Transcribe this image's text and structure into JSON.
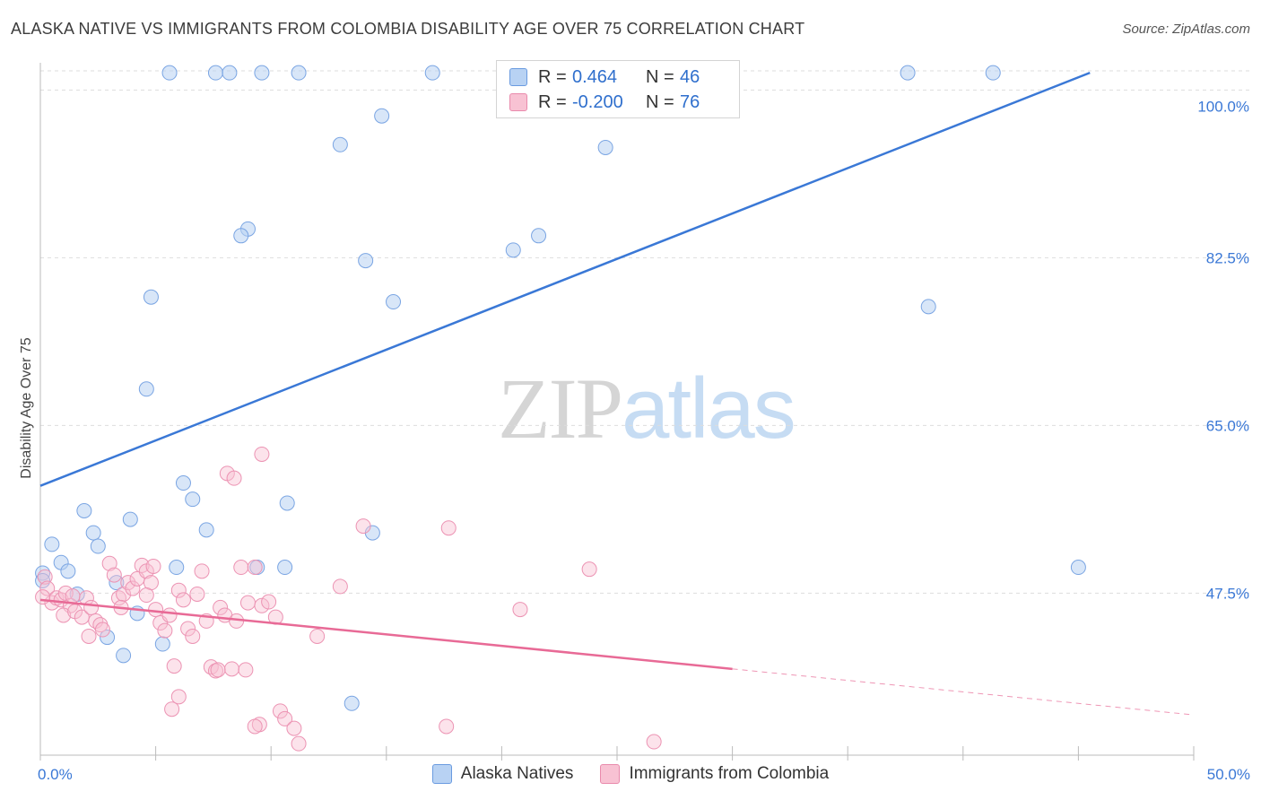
{
  "title": "ALASKA NATIVE VS IMMIGRANTS FROM COLOMBIA DISABILITY AGE OVER 75 CORRELATION CHART",
  "source": "Source: ZipAtlas.com",
  "watermark": {
    "zip": "ZIP",
    "atlas": "atlas"
  },
  "colors": {
    "blue": "#3a78d6",
    "blue_fill": "#b8d2f3",
    "pink": "#e86a96",
    "pink_fill": "#f8c2d3",
    "tick_label": "#3a78d6",
    "grid": "#dddddd"
  },
  "legend": {
    "rows": [
      {
        "r_label": "R =",
        "r_value": "0.464",
        "n_label": "N =",
        "n_value": "46"
      },
      {
        "r_label": "R =",
        "r_value": "-0.200",
        "n_label": "N =",
        "n_value": "76"
      }
    ]
  },
  "chart_data": {
    "type": "scatter",
    "title": "ALASKA NATIVE VS IMMIGRANTS FROM COLOMBIA DISABILITY AGE OVER 75 CORRELATION CHART",
    "xlabel": "",
    "ylabel": "Disability Age Over 75",
    "xlim": [
      0,
      50
    ],
    "ylim": [
      30.6,
      102
    ],
    "x_tick_labels": [
      "0.0%",
      "50.0%"
    ],
    "y_ticks": [
      47.5,
      65.0,
      82.5,
      100.0
    ],
    "y_tick_labels": [
      "47.5%",
      "65.0%",
      "82.5%",
      "100.0%"
    ],
    "grid": true,
    "legend_position": "bottom",
    "series": [
      {
        "name": "Alaska Natives",
        "color": "#3a78d6",
        "trend": {
          "x": [
            0,
            45.5
          ],
          "y": [
            58.7,
            101.8
          ]
        },
        "points": [
          [
            5.6,
            101.8
          ],
          [
            7.6,
            101.8
          ],
          [
            8.2,
            101.8
          ],
          [
            9.6,
            101.8
          ],
          [
            11.2,
            101.8
          ],
          [
            17.0,
            101.8
          ],
          [
            20.4,
            101.8
          ],
          [
            37.6,
            101.8
          ],
          [
            41.3,
            101.8
          ],
          [
            14.8,
            97.3
          ],
          [
            13.0,
            94.3
          ],
          [
            24.5,
            94.0
          ],
          [
            9.0,
            85.5
          ],
          [
            8.7,
            84.8
          ],
          [
            21.6,
            84.8
          ],
          [
            20.5,
            83.3
          ],
          [
            14.1,
            82.2
          ],
          [
            4.8,
            78.4
          ],
          [
            15.3,
            77.9
          ],
          [
            38.5,
            77.4
          ],
          [
            4.6,
            68.8
          ],
          [
            6.2,
            59.0
          ],
          [
            6.6,
            57.3
          ],
          [
            10.7,
            56.9
          ],
          [
            1.9,
            56.1
          ],
          [
            3.9,
            55.2
          ],
          [
            7.2,
            54.1
          ],
          [
            2.3,
            53.8
          ],
          [
            14.4,
            53.8
          ],
          [
            0.5,
            52.6
          ],
          [
            2.5,
            52.4
          ],
          [
            0.9,
            50.7
          ],
          [
            1.2,
            49.8
          ],
          [
            5.9,
            50.2
          ],
          [
            9.4,
            50.2
          ],
          [
            10.6,
            50.2
          ],
          [
            45.0,
            50.2
          ],
          [
            0.1,
            49.6
          ],
          [
            3.3,
            48.6
          ],
          [
            1.6,
            47.4
          ],
          [
            4.2,
            45.4
          ],
          [
            2.9,
            42.9
          ],
          [
            5.3,
            42.2
          ],
          [
            3.6,
            41.0
          ],
          [
            13.5,
            36.0
          ],
          [
            0.1,
            48.8
          ]
        ]
      },
      {
        "name": "Immigrants from Colombia",
        "color": "#e86a96",
        "trend": {
          "x": [
            0,
            30
          ],
          "y": [
            46.8,
            39.6
          ]
        },
        "trend_dashed": {
          "x": [
            30,
            50
          ],
          "y": [
            39.6,
            34.8
          ]
        },
        "points": [
          [
            0.2,
            49.2
          ],
          [
            0.3,
            48.0
          ],
          [
            0.5,
            46.5
          ],
          [
            0.7,
            47.0
          ],
          [
            0.9,
            46.8
          ],
          [
            1.1,
            47.5
          ],
          [
            1.3,
            46.2
          ],
          [
            1.0,
            45.2
          ],
          [
            1.5,
            45.6
          ],
          [
            1.8,
            45.0
          ],
          [
            2.0,
            47.0
          ],
          [
            2.2,
            46.0
          ],
          [
            2.4,
            44.6
          ],
          [
            2.6,
            44.2
          ],
          [
            2.7,
            43.7
          ],
          [
            2.1,
            43.0
          ],
          [
            3.0,
            50.6
          ],
          [
            3.2,
            49.4
          ],
          [
            3.4,
            47.0
          ],
          [
            3.6,
            47.4
          ],
          [
            3.8,
            48.6
          ],
          [
            4.0,
            48.0
          ],
          [
            4.2,
            49.0
          ],
          [
            4.4,
            50.4
          ],
          [
            4.6,
            49.8
          ],
          [
            4.8,
            48.6
          ],
          [
            5.0,
            45.8
          ],
          [
            5.2,
            44.4
          ],
          [
            5.4,
            43.6
          ],
          [
            5.6,
            45.2
          ],
          [
            6.0,
            47.8
          ],
          [
            6.2,
            46.8
          ],
          [
            6.4,
            43.8
          ],
          [
            6.6,
            43.0
          ],
          [
            6.8,
            47.4
          ],
          [
            7.0,
            49.8
          ],
          [
            7.2,
            44.6
          ],
          [
            7.4,
            39.8
          ],
          [
            7.6,
            39.4
          ],
          [
            7.8,
            46.0
          ],
          [
            8.0,
            45.2
          ],
          [
            8.3,
            39.6
          ],
          [
            8.5,
            44.6
          ],
          [
            8.7,
            50.2
          ],
          [
            9.0,
            46.5
          ],
          [
            9.3,
            50.2
          ],
          [
            9.6,
            46.2
          ],
          [
            9.9,
            46.6
          ],
          [
            10.2,
            45.0
          ],
          [
            10.4,
            35.2
          ],
          [
            10.6,
            34.4
          ],
          [
            8.1,
            60.0
          ],
          [
            8.4,
            59.5
          ],
          [
            9.6,
            62.0
          ],
          [
            14.0,
            54.5
          ],
          [
            17.7,
            54.3
          ],
          [
            13.0,
            48.2
          ],
          [
            23.8,
            50.0
          ],
          [
            12.0,
            43.0
          ],
          [
            20.8,
            45.8
          ],
          [
            3.5,
            46.0
          ],
          [
            4.9,
            50.3
          ],
          [
            5.8,
            39.9
          ],
          [
            5.7,
            35.4
          ],
          [
            6.0,
            36.7
          ],
          [
            11.2,
            31.8
          ],
          [
            11.0,
            33.4
          ],
          [
            17.6,
            33.6
          ],
          [
            26.6,
            32.0
          ],
          [
            7.7,
            39.5
          ],
          [
            9.5,
            33.8
          ],
          [
            9.3,
            33.6
          ],
          [
            8.9,
            39.5
          ],
          [
            4.6,
            47.3
          ],
          [
            1.4,
            47.2
          ],
          [
            0.1,
            47.1
          ]
        ]
      }
    ]
  }
}
